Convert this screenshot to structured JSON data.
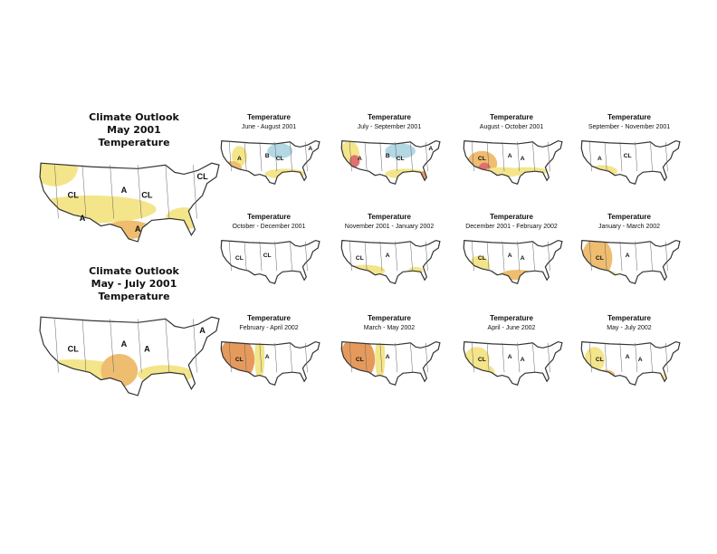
{
  "outlooks": [
    {
      "title": [
        "Climate Outlook",
        "May 2001",
        "Temperature"
      ],
      "labels": [
        "A",
        "CL",
        "CL",
        "CL",
        "A",
        "A"
      ]
    },
    {
      "title": [
        "Climate Outlook",
        "May - July 2001",
        "Temperature"
      ],
      "labels": [
        "A",
        "CL",
        "A",
        "A"
      ]
    }
  ],
  "panels": [
    {
      "title": "Temperature",
      "period": "June - August 2001",
      "labels": [
        "B",
        "A",
        "CL",
        "A"
      ]
    },
    {
      "title": "Temperature",
      "period": "July - September 2001",
      "labels": [
        "B",
        "A",
        "CL",
        "A"
      ]
    },
    {
      "title": "Temperature",
      "period": "August - October 2001",
      "labels": [
        "A",
        "CL",
        "A"
      ]
    },
    {
      "title": "Temperature",
      "period": "September - November 2001",
      "labels": [
        "CL",
        "A"
      ]
    },
    {
      "title": "Temperature",
      "period": "October - December 2001",
      "labels": [
        "CL",
        "CL"
      ]
    },
    {
      "title": "Temperature",
      "period": "November 2001 - January 2002",
      "labels": [
        "A",
        "CL"
      ]
    },
    {
      "title": "Temperature",
      "period": "December 2001 - February 2002",
      "labels": [
        "A",
        "CL",
        "A"
      ]
    },
    {
      "title": "Temperature",
      "period": "January - March 2002",
      "labels": [
        "A",
        "CL"
      ]
    },
    {
      "title": "Temperature",
      "period": "February - April 2002",
      "labels": [
        "A",
        "CL"
      ]
    },
    {
      "title": "Temperature",
      "period": "March - May 2002",
      "labels": [
        "A",
        "CL"
      ]
    },
    {
      "title": "Temperature",
      "period": "April - June 2002",
      "labels": [
        "A",
        "CL",
        "A"
      ]
    },
    {
      "title": "Temperature",
      "period": "May - July 2002",
      "labels": [
        "A",
        "CL",
        "A"
      ]
    }
  ]
}
